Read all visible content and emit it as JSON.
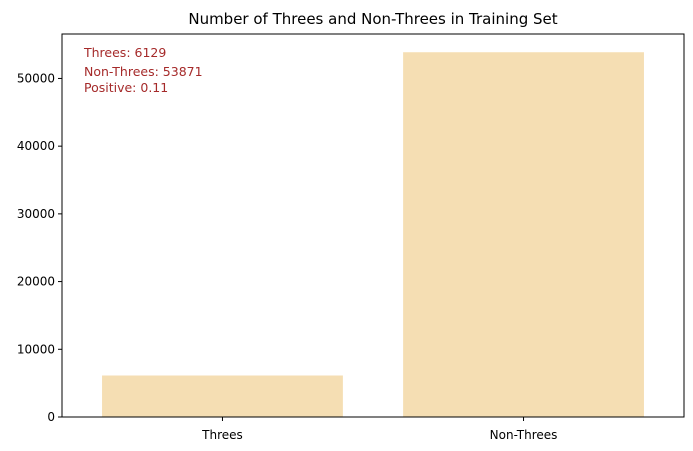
{
  "chart_data": {
    "type": "bar",
    "title": "Number of Threes and Non-Threes in Training Set",
    "categories": [
      "Threes",
      "Non-Threes"
    ],
    "values": [
      6129,
      53871
    ],
    "ylim": [
      0,
      56564
    ],
    "yticks": [
      0,
      10000,
      20000,
      30000,
      40000,
      50000
    ],
    "bar_color": "#f5deb3",
    "annotation_color": "#a52a2a",
    "grid": false,
    "annotations": [
      "Threes: 6129",
      "Non-Threes: 53871",
      "Positive: 0.11"
    ]
  }
}
